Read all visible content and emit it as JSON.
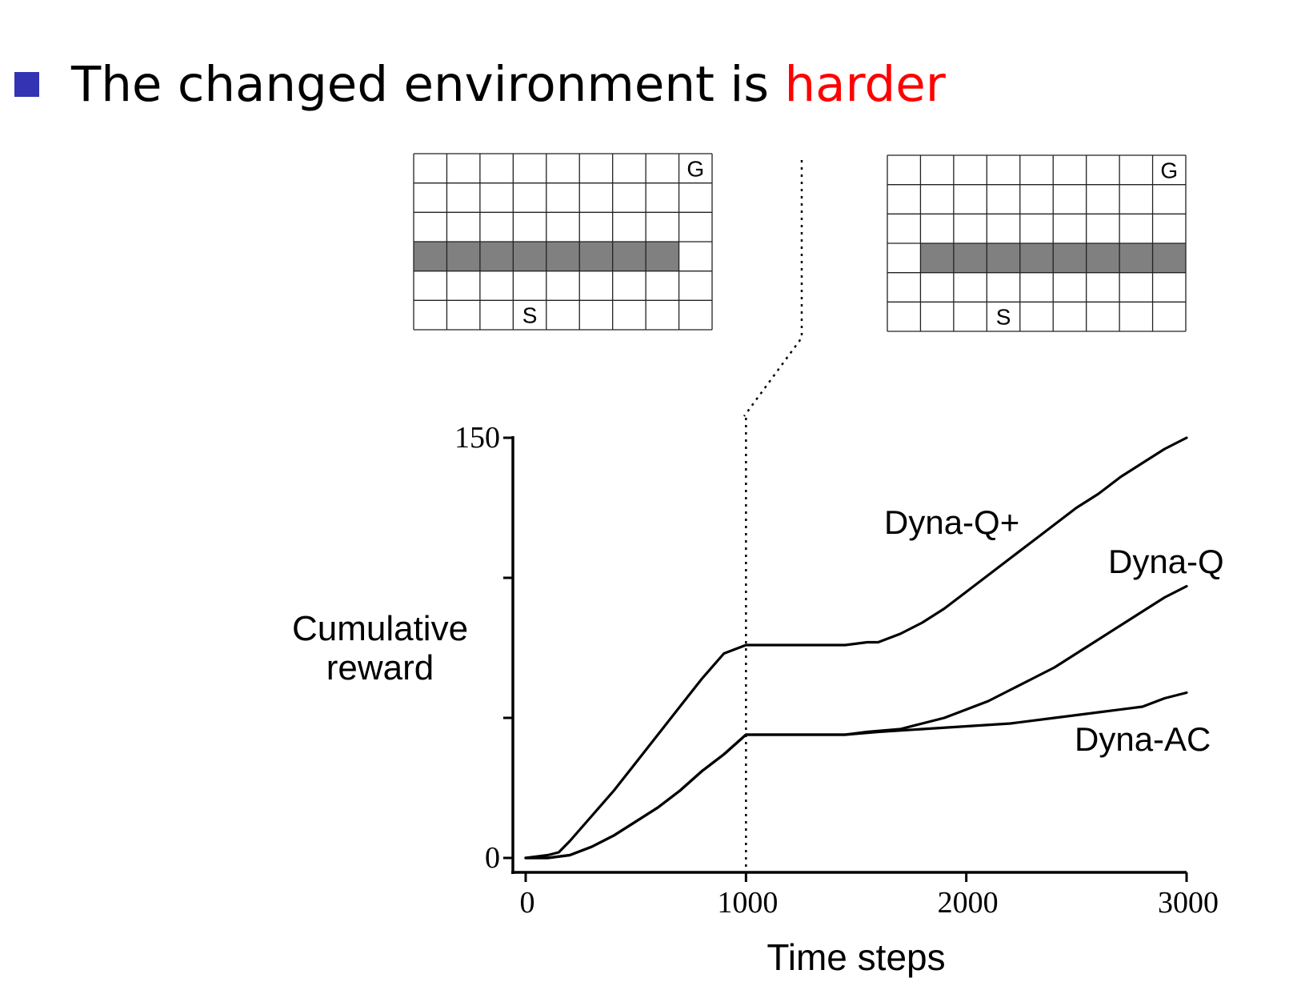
{
  "slide": {
    "headline_text": "The changed environment is ",
    "headline_accent": "harder",
    "bullet_color": "#3333b3",
    "accent_color": "#ff0000"
  },
  "mazes": {
    "cols": 9,
    "rows": 6,
    "start_label": "S",
    "goal_label": "G",
    "start_cell": [
      3,
      5
    ],
    "goal_cell": [
      8,
      0
    ],
    "wall_color": "#808080",
    "before": {
      "wall_row": 3,
      "wall_cols": [
        0,
        7
      ]
    },
    "after": {
      "wall_row": 3,
      "wall_cols": [
        1,
        8
      ]
    }
  },
  "chart_data": {
    "type": "line",
    "title": "",
    "xlabel": "Time steps",
    "ylabel": "Cumulative reward",
    "xlim": [
      0,
      3000
    ],
    "ylim": [
      0,
      150
    ],
    "x_ticks": [
      0,
      1000,
      2000,
      3000
    ],
    "y_ticks": [
      0,
      50,
      100,
      150
    ],
    "y_tick_labels": [
      "0",
      "",
      "",
      "150"
    ],
    "change_point": 1000,
    "series": [
      {
        "name": "Dyna-Q+",
        "x": [
          0,
          100,
          150,
          200,
          300,
          400,
          500,
          600,
          700,
          800,
          900,
          1000,
          1100,
          1300,
          1450,
          1550,
          1600,
          1700,
          1800,
          1900,
          2000,
          2100,
          2200,
          2300,
          2400,
          2500,
          2600,
          2700,
          2800,
          2900,
          3000
        ],
        "y": [
          0,
          1,
          2,
          6,
          15,
          24,
          34,
          44,
          54,
          64,
          73,
          76,
          76,
          76,
          76,
          77,
          77,
          80,
          84,
          89,
          95,
          101,
          107,
          113,
          119,
          125,
          130,
          136,
          141,
          146,
          150
        ]
      },
      {
        "name": "Dyna-Q",
        "x": [
          0,
          100,
          200,
          300,
          400,
          500,
          600,
          700,
          800,
          900,
          1000,
          1100,
          1300,
          1450,
          1550,
          1700,
          1800,
          1900,
          2000,
          2100,
          2200,
          2300,
          2400,
          2500,
          2600,
          2700,
          2800,
          2900,
          3000
        ],
        "y": [
          0,
          0,
          1,
          4,
          8,
          13,
          18,
          24,
          31,
          37,
          44,
          44,
          44,
          44,
          45,
          46,
          48,
          50,
          53,
          56,
          60,
          64,
          68,
          73,
          78,
          83,
          88,
          93,
          97
        ]
      },
      {
        "name": "Dyna-AC",
        "x": [
          0,
          100,
          200,
          300,
          400,
          500,
          600,
          700,
          800,
          900,
          1000,
          1100,
          1300,
          1450,
          1600,
          1800,
          2000,
          2200,
          2400,
          2600,
          2800,
          2900,
          3000
        ],
        "y": [
          0,
          0,
          1,
          4,
          8,
          13,
          18,
          24,
          31,
          37,
          44,
          44,
          44,
          44,
          45,
          46,
          47,
          48,
          50,
          52,
          54,
          57,
          59
        ]
      }
    ]
  }
}
